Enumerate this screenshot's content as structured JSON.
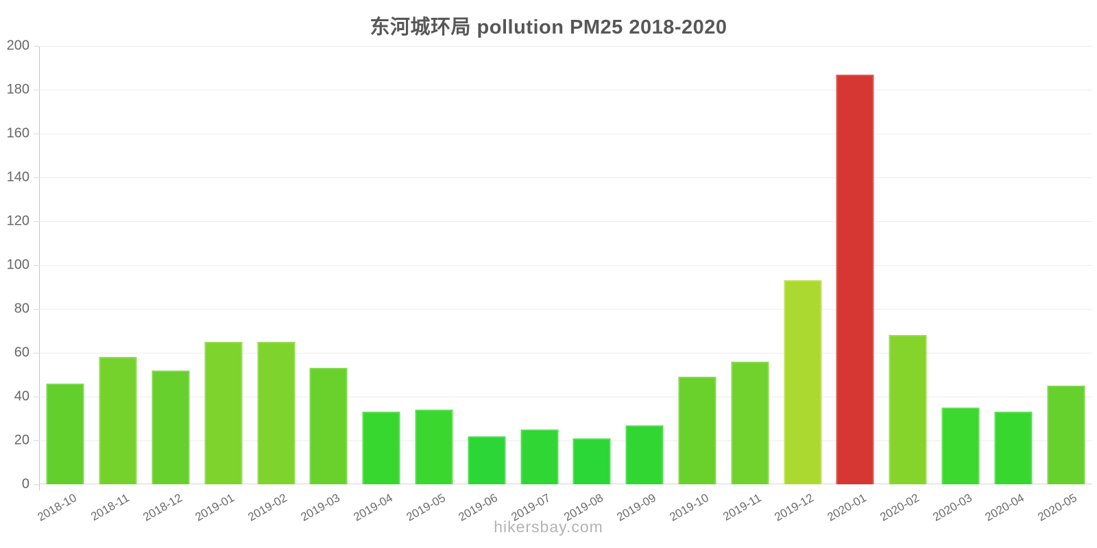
{
  "page": {
    "background": "#ffffff",
    "footer_text": "hikersbay.com"
  },
  "chart_data": {
    "type": "bar",
    "title": "东河城环局 pollution PM25 2018-2020",
    "xlabel": "",
    "ylabel": "",
    "ylim": [
      0,
      200
    ],
    "y_ticks": [
      0,
      20,
      40,
      60,
      80,
      100,
      120,
      140,
      160,
      180,
      200
    ],
    "grid": "horizontal-only",
    "legend": false,
    "categories": [
      "2018-10",
      "2018-11",
      "2018-12",
      "2019-01",
      "2019-02",
      "2019-03",
      "2019-04",
      "2019-05",
      "2019-06",
      "2019-07",
      "2019-08",
      "2019-09",
      "2019-10",
      "2019-11",
      "2019-12",
      "2020-01",
      "2020-02",
      "2020-03",
      "2020-04",
      "2020-05"
    ],
    "values": [
      46,
      58,
      52,
      65,
      65,
      53,
      33,
      34,
      22,
      25,
      21,
      27,
      49,
      56,
      93,
      187,
      68,
      35,
      33,
      45
    ],
    "bar_colors": [
      "#63cf2c",
      "#75d22d",
      "#67d02c",
      "#7ed32c",
      "#7ed32c",
      "#68d12c",
      "#38d72f",
      "#3ad72f",
      "#2cd636",
      "#30d634",
      "#2bd637",
      "#31d633",
      "#69d02c",
      "#72d22d",
      "#abd92f",
      "#d63732",
      "#84d42c",
      "#3cd72f",
      "#38d72f",
      "#66d02c"
    ],
    "bar_border_colors": [
      "#80da4f",
      "#90dc53",
      "#84d950",
      "#99dd52",
      "#99dd52",
      "#85d950",
      "#5ee054",
      "#60e055",
      "#55df59",
      "#58df58",
      "#54df5a",
      "#59df57",
      "#86d950",
      "#8ddb52",
      "#c1e45a",
      "#dd5a52",
      "#9edd51",
      "#62e055",
      "#5ee054",
      "#81d84e"
    ],
    "colors": {
      "title": "#575757",
      "tick_label": "#666666",
      "x_tick_label": "#6b6b6b",
      "gridline": "#ededed",
      "axis_line": "#c6c6c6",
      "baseline": "#d2d2d2",
      "footer": "#b3b3b3"
    }
  }
}
